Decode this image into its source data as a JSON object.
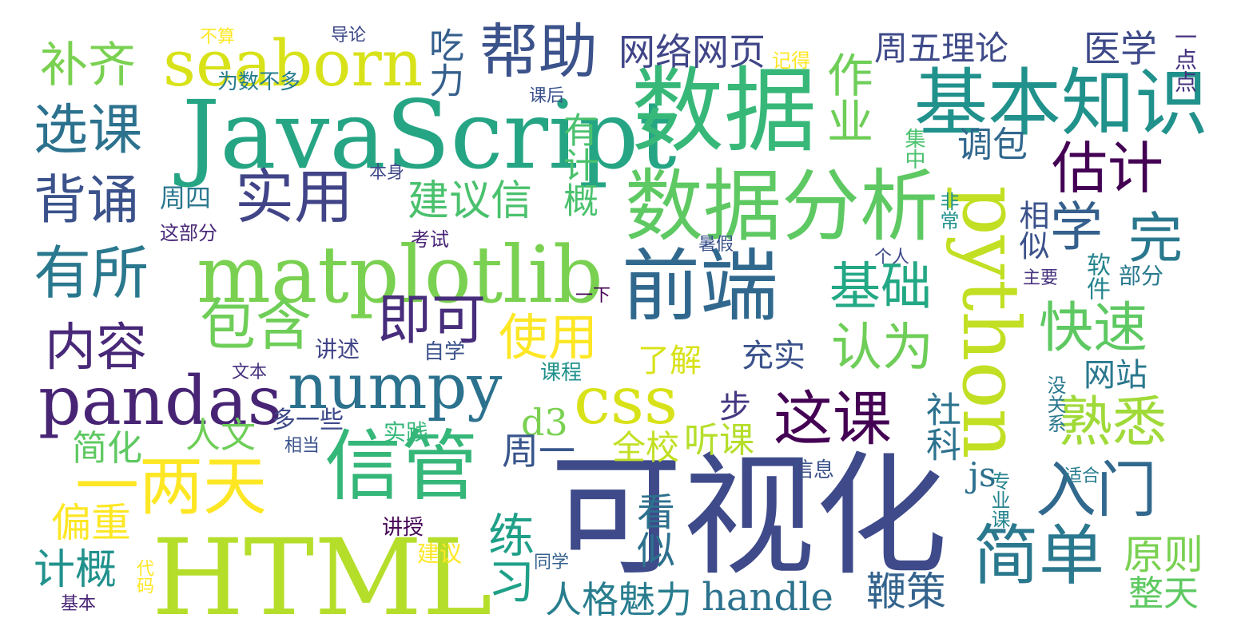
{
  "words": [
    {
      "text": "可视化",
      "color": "#3e4a89"
    },
    {
      "text": "HTML",
      "color": "#b5de2b"
    },
    {
      "text": "JavaScript",
      "color": "#26a584"
    },
    {
      "text": "python",
      "color": "#c2df23"
    },
    {
      "text": "数据",
      "color": "#37b878"
    },
    {
      "text": "数据分析",
      "color": "#5ec962"
    },
    {
      "text": "基本知识",
      "color": "#21918c"
    },
    {
      "text": "前端",
      "color": "#31688e"
    },
    {
      "text": "matplotlib",
      "color": "#7ad151"
    },
    {
      "text": "seaborn",
      "color": "#d8e219"
    },
    {
      "text": "pandas",
      "color": "#482475"
    },
    {
      "text": "numpy",
      "color": "#2c728e"
    },
    {
      "text": "信管",
      "color": "#35b779"
    },
    {
      "text": "一两天",
      "color": "#fde725"
    },
    {
      "text": "这课",
      "color": "#440154"
    },
    {
      "text": "帮助",
      "color": "#3b528b"
    },
    {
      "text": "作业",
      "color": "#6ece58"
    },
    {
      "text": "实用",
      "color": "#414487"
    },
    {
      "text": "有所",
      "color": "#2a788e"
    },
    {
      "text": "选课",
      "color": "#2c728e"
    },
    {
      "text": "背诵",
      "color": "#3b528b"
    },
    {
      "text": "补齐",
      "color": "#7ad151"
    },
    {
      "text": "内容",
      "color": "#482878"
    },
    {
      "text": "包含",
      "color": "#6ece58"
    },
    {
      "text": "即可",
      "color": "#472d7b"
    },
    {
      "text": "使用",
      "color": "#fde725"
    },
    {
      "text": "css",
      "color": "#d8e219"
    },
    {
      "text": "基础",
      "color": "#22a884"
    },
    {
      "text": "认为",
      "color": "#6ece58"
    },
    {
      "text": "快速",
      "color": "#5ec962"
    },
    {
      "text": "熟悉",
      "color": "#a0da39"
    },
    {
      "text": "估计",
      "color": "#440154"
    },
    {
      "text": "学",
      "color": "#35608d"
    },
    {
      "text": "完",
      "color": "#2a788e"
    },
    {
      "text": "入门",
      "color": "#31688e"
    },
    {
      "text": "简单",
      "color": "#2a788e"
    },
    {
      "text": "原则",
      "color": "#7ad151"
    },
    {
      "text": "整天",
      "color": "#5ec962"
    },
    {
      "text": "鞭策",
      "color": "#33638d"
    },
    {
      "text": "handle",
      "color": "#2c728e"
    },
    {
      "text": "人格魅力",
      "color": "#287d8e"
    },
    {
      "text": "练习",
      "color": "#1fa088"
    },
    {
      "text": "看似",
      "color": "#2d708e"
    },
    {
      "text": "建议",
      "color": "#fde725"
    },
    {
      "text": "计概",
      "color": "#21918c"
    },
    {
      "text": "偏重",
      "color": "#fde725"
    },
    {
      "text": "简化",
      "color": "#5ec962"
    },
    {
      "text": "人文",
      "color": "#6ece58"
    },
    {
      "text": "d3",
      "color": "#7ad151"
    },
    {
      "text": "全校",
      "color": "#c2df23"
    },
    {
      "text": "听课",
      "color": "#b5de2b"
    },
    {
      "text": "周一",
      "color": "#39568c"
    },
    {
      "text": "步",
      "color": "#453781"
    },
    {
      "text": "充实",
      "color": "#3b528b"
    },
    {
      "text": "了解",
      "color": "#d8e219"
    },
    {
      "text": "网站",
      "color": "#2a788e"
    },
    {
      "text": "社科",
      "color": "#2c728e"
    },
    {
      "text": "js",
      "color": "#2d708e"
    },
    {
      "text": "周五理论",
      "color": "#3e4a89"
    },
    {
      "text": "医学",
      "color": "#3e4a89"
    },
    {
      "text": "网络网页",
      "color": "#404688"
    },
    {
      "text": "建议信",
      "color": "#4ac16d"
    },
    {
      "text": "有计概",
      "color": "#4ac16d"
    },
    {
      "text": "吃力",
      "color": "#35608d"
    },
    {
      "text": "调包",
      "color": "#31688e"
    },
    {
      "text": "相似",
      "color": "#3b528b"
    },
    {
      "text": "软件",
      "color": "#25848e"
    },
    {
      "text": "部分",
      "color": "#29798e"
    },
    {
      "text": "周四",
      "color": "#2a788e"
    },
    {
      "text": "一点点",
      "color": "#46327e"
    },
    {
      "text": "不算",
      "color": "#fde725"
    },
    {
      "text": "导论",
      "color": "#3e4a89"
    },
    {
      "text": "记得",
      "color": "#fde725"
    },
    {
      "text": "为数不多",
      "color": "#287d8e"
    },
    {
      "text": "课后",
      "color": "#3b528b"
    },
    {
      "text": "集中",
      "color": "#4ac16d"
    },
    {
      "text": "本身",
      "color": "#3e4a89"
    },
    {
      "text": "这部分",
      "color": "#482878"
    },
    {
      "text": "考试",
      "color": "#482475"
    },
    {
      "text": "暑假",
      "color": "#3b528b"
    },
    {
      "text": "个人",
      "color": "#3e4a89"
    },
    {
      "text": "非常",
      "color": "#21918c"
    },
    {
      "text": "主要",
      "color": "#46327e"
    },
    {
      "text": "一下",
      "color": "#440154"
    },
    {
      "text": "讲述",
      "color": "#414487"
    },
    {
      "text": "自学",
      "color": "#3b528b"
    },
    {
      "text": "文本",
      "color": "#46327e"
    },
    {
      "text": "课程",
      "color": "#21918c"
    },
    {
      "text": "多一些",
      "color": "#3e4a89"
    },
    {
      "text": "相当",
      "color": "#3b528b"
    },
    {
      "text": "实践",
      "color": "#35b779"
    },
    {
      "text": "信息",
      "color": "#3b528b"
    },
    {
      "text": "没关系",
      "color": "#2a788e"
    },
    {
      "text": "专业课",
      "color": "#25848e"
    },
    {
      "text": "适合",
      "color": "#287d8e"
    },
    {
      "text": "讲授",
      "color": "#440154"
    },
    {
      "text": "同学",
      "color": "#35608d"
    },
    {
      "text": "代码",
      "color": "#fde725"
    },
    {
      "text": "基本",
      "color": "#482475"
    }
  ]
}
